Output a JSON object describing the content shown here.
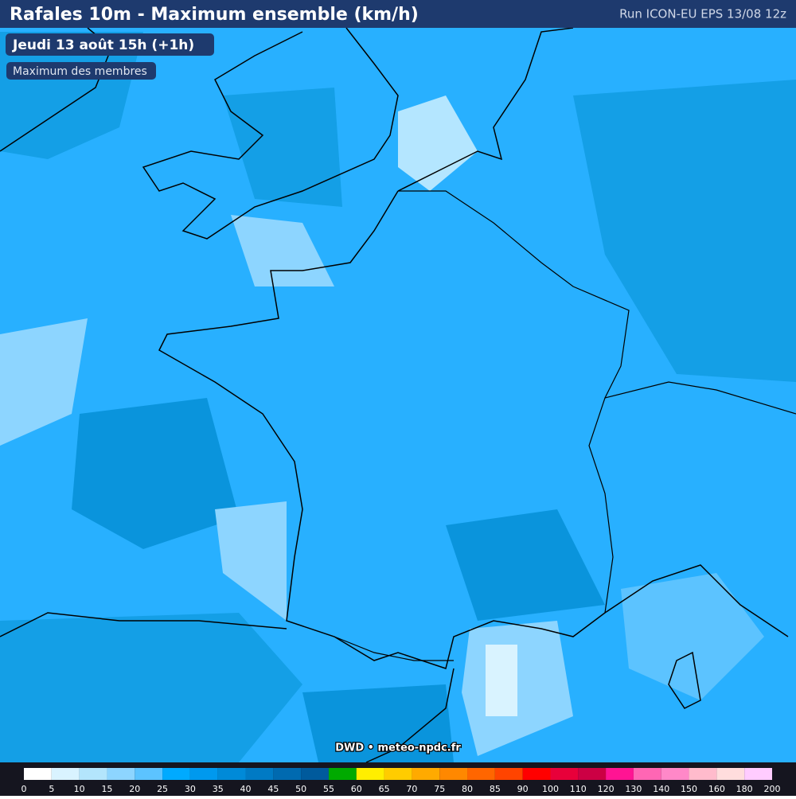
{
  "header": {
    "title": "Rafales 10m - Maximum ensemble (km/h)",
    "run": "Run ICON-EU EPS 13/08 12z"
  },
  "badges": {
    "date": "Jeudi 13 août 15h (+1h)",
    "subtitle": "Maximum des membres"
  },
  "credit": "DWD • meteo-npdc.fr",
  "legend": {
    "ticks": [
      0,
      5,
      10,
      15,
      20,
      25,
      30,
      35,
      40,
      45,
      50,
      55,
      60,
      65,
      70,
      75,
      80,
      85,
      90,
      100,
      110,
      120,
      130,
      140,
      150,
      160,
      180,
      200
    ],
    "colors": [
      "#ffffff",
      "#d9f3ff",
      "#b3e5fc",
      "#8dd5ff",
      "#5cc3ff",
      "#00aaff",
      "#0099ee",
      "#008ad8",
      "#007ac4",
      "#006ab0",
      "#005a9c",
      "#00aa00",
      "#ffee00",
      "#ffcc00",
      "#ffaa00",
      "#ff8800",
      "#ff6600",
      "#ff4400",
      "#ff0000",
      "#e8003a",
      "#cc0044",
      "#ff1493",
      "#ff66b4",
      "#ff88c8",
      "#ffbbcc",
      "#ffdddd",
      "#ffccff"
    ]
  }
}
